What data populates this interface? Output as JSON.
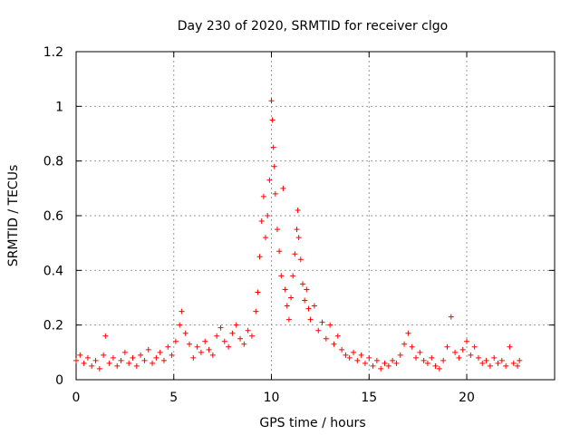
{
  "chart_data": {
    "type": "scatter",
    "title": "Day 230 of 2020, SRMTID for receiver clgo",
    "xlabel": "GPS time / hours",
    "ylabel": "SRMTID / TECUs",
    "xlim": [
      0,
      24.5
    ],
    "ylim": [
      0,
      1.2
    ],
    "grid": true,
    "marker": "+",
    "series_color": "#ff0000",
    "x_ticks": [
      {
        "value": 0,
        "label": "0"
      },
      {
        "value": 5,
        "label": "5"
      },
      {
        "value": 10,
        "label": "10"
      },
      {
        "value": 15,
        "label": "15"
      },
      {
        "value": 20,
        "label": "20"
      }
    ],
    "y_ticks": [
      {
        "value": 0,
        "label": "0"
      },
      {
        "value": 0.2,
        "label": "0.2"
      },
      {
        "value": 0.4,
        "label": "0.4"
      },
      {
        "value": 0.6,
        "label": "0.6"
      },
      {
        "value": 0.8,
        "label": "0.8"
      },
      {
        "value": 1.0,
        "label": "1"
      },
      {
        "value": 1.2,
        "label": "1.2"
      }
    ],
    "series": [
      {
        "name": "SRMTID",
        "points": [
          [
            0.0,
            0.07
          ],
          [
            0.2,
            0.09
          ],
          [
            0.4,
            0.06
          ],
          [
            0.6,
            0.08
          ],
          [
            0.8,
            0.05
          ],
          [
            1.0,
            0.07
          ],
          [
            1.2,
            0.04
          ],
          [
            1.4,
            0.09
          ],
          [
            1.5,
            0.16
          ],
          [
            1.7,
            0.06
          ],
          [
            1.9,
            0.08
          ],
          [
            2.1,
            0.05
          ],
          [
            2.3,
            0.07
          ],
          [
            2.5,
            0.1
          ],
          [
            2.7,
            0.06
          ],
          [
            2.9,
            0.08
          ],
          [
            3.1,
            0.05
          ],
          [
            3.3,
            0.09
          ],
          [
            3.5,
            0.07
          ],
          [
            3.7,
            0.11
          ],
          [
            3.9,
            0.06
          ],
          [
            4.1,
            0.08
          ],
          [
            4.3,
            0.1
          ],
          [
            4.5,
            0.07
          ],
          [
            4.7,
            0.12
          ],
          [
            4.9,
            0.09
          ],
          [
            5.1,
            0.14
          ],
          [
            5.3,
            0.2
          ],
          [
            5.4,
            0.25
          ],
          [
            5.6,
            0.17
          ],
          [
            5.8,
            0.13
          ],
          [
            6.0,
            0.08
          ],
          [
            6.2,
            0.12
          ],
          [
            6.4,
            0.1
          ],
          [
            6.6,
            0.14
          ],
          [
            6.8,
            0.11
          ],
          [
            7.0,
            0.09
          ],
          [
            7.2,
            0.16
          ],
          [
            7.4,
            0.19
          ],
          [
            7.6,
            0.14
          ],
          [
            7.8,
            0.12
          ],
          [
            8.0,
            0.17
          ],
          [
            8.2,
            0.2
          ],
          [
            8.4,
            0.15
          ],
          [
            8.6,
            0.13
          ],
          [
            8.8,
            0.18
          ],
          [
            9.0,
            0.16
          ],
          [
            9.2,
            0.25
          ],
          [
            9.3,
            0.32
          ],
          [
            9.4,
            0.45
          ],
          [
            9.5,
            0.58
          ],
          [
            9.6,
            0.67
          ],
          [
            9.7,
            0.52
          ],
          [
            9.8,
            0.6
          ],
          [
            9.9,
            0.73
          ],
          [
            10.0,
            1.02
          ],
          [
            10.05,
            0.95
          ],
          [
            10.1,
            0.85
          ],
          [
            10.15,
            0.78
          ],
          [
            10.2,
            0.68
          ],
          [
            10.3,
            0.55
          ],
          [
            10.4,
            0.47
          ],
          [
            10.5,
            0.38
          ],
          [
            10.6,
            0.7
          ],
          [
            10.7,
            0.33
          ],
          [
            10.8,
            0.27
          ],
          [
            10.9,
            0.22
          ],
          [
            11.0,
            0.3
          ],
          [
            11.1,
            0.38
          ],
          [
            11.2,
            0.46
          ],
          [
            11.3,
            0.55
          ],
          [
            11.35,
            0.62
          ],
          [
            11.4,
            0.52
          ],
          [
            11.5,
            0.44
          ],
          [
            11.6,
            0.35
          ],
          [
            11.7,
            0.29
          ],
          [
            11.8,
            0.33
          ],
          [
            11.9,
            0.26
          ],
          [
            12.0,
            0.22
          ],
          [
            12.2,
            0.27
          ],
          [
            12.4,
            0.18
          ],
          [
            12.6,
            0.21
          ],
          [
            12.8,
            0.15
          ],
          [
            13.0,
            0.2
          ],
          [
            13.2,
            0.13
          ],
          [
            13.4,
            0.16
          ],
          [
            13.6,
            0.11
          ],
          [
            13.8,
            0.09
          ],
          [
            14.0,
            0.08
          ],
          [
            14.2,
            0.1
          ],
          [
            14.4,
            0.07
          ],
          [
            14.6,
            0.09
          ],
          [
            14.8,
            0.06
          ],
          [
            15.0,
            0.08
          ],
          [
            15.2,
            0.05
          ],
          [
            15.4,
            0.07
          ],
          [
            15.6,
            0.04
          ],
          [
            15.8,
            0.06
          ],
          [
            16.0,
            0.05
          ],
          [
            16.2,
            0.07
          ],
          [
            16.4,
            0.06
          ],
          [
            16.6,
            0.09
          ],
          [
            16.8,
            0.13
          ],
          [
            17.0,
            0.17
          ],
          [
            17.2,
            0.12
          ],
          [
            17.4,
            0.08
          ],
          [
            17.6,
            0.1
          ],
          [
            17.8,
            0.07
          ],
          [
            18.0,
            0.06
          ],
          [
            18.2,
            0.08
          ],
          [
            18.4,
            0.05
          ],
          [
            18.6,
            0.04
          ],
          [
            18.8,
            0.07
          ],
          [
            19.0,
            0.12
          ],
          [
            19.2,
            0.23
          ],
          [
            19.4,
            0.1
          ],
          [
            19.6,
            0.08
          ],
          [
            19.8,
            0.11
          ],
          [
            20.0,
            0.14
          ],
          [
            20.2,
            0.09
          ],
          [
            20.4,
            0.12
          ],
          [
            20.6,
            0.08
          ],
          [
            20.8,
            0.06
          ],
          [
            21.0,
            0.07
          ],
          [
            21.2,
            0.05
          ],
          [
            21.4,
            0.08
          ],
          [
            21.6,
            0.06
          ],
          [
            21.8,
            0.07
          ],
          [
            22.0,
            0.05
          ],
          [
            22.2,
            0.12
          ],
          [
            22.4,
            0.06
          ],
          [
            22.6,
            0.05
          ],
          [
            22.7,
            0.07
          ]
        ]
      }
    ]
  }
}
